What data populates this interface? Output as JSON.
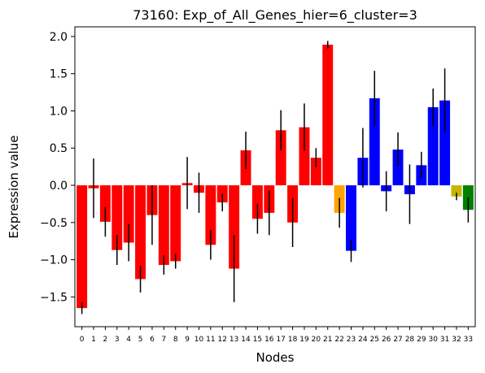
{
  "chart_data": {
    "type": "bar",
    "title": "73160: Exp_of_All_Genes_hier=6_cluster=3",
    "xlabel": "Nodes",
    "ylabel": "Expression value",
    "ylim": [
      -1.9,
      2.13
    ],
    "xlim": [
      -0.6,
      33.6
    ],
    "yticks": [
      -1.5,
      -1.0,
      -0.5,
      0.0,
      0.5,
      1.0,
      1.5,
      2.0
    ],
    "ytick_labels": [
      "−1.5",
      "−1.0",
      "−0.5",
      "0.0",
      "0.5",
      "1.0",
      "1.5",
      "2.0"
    ],
    "categories": [
      "0",
      "1",
      "2",
      "3",
      "4",
      "5",
      "6",
      "7",
      "8",
      "9",
      "10",
      "11",
      "12",
      "13",
      "14",
      "15",
      "16",
      "17",
      "18",
      "19",
      "20",
      "21",
      "22",
      "23",
      "24",
      "25",
      "26",
      "27",
      "28",
      "29",
      "30",
      "31",
      "32",
      "33"
    ],
    "values": [
      -1.65,
      -0.04,
      -0.49,
      -0.87,
      -0.77,
      -1.26,
      -0.4,
      -1.07,
      -1.02,
      0.03,
      -0.1,
      -0.8,
      -0.23,
      -1.12,
      0.47,
      -0.45,
      -0.37,
      0.74,
      -0.5,
      0.78,
      0.37,
      1.89,
      -0.37,
      -0.88,
      0.37,
      1.17,
      -0.08,
      0.48,
      -0.12,
      0.27,
      1.05,
      1.14,
      -0.15,
      -0.33
    ],
    "errors": [
      0.08,
      0.4,
      0.2,
      0.2,
      0.25,
      0.18,
      0.4,
      0.13,
      0.1,
      0.35,
      0.27,
      0.2,
      0.12,
      0.45,
      0.25,
      0.2,
      0.3,
      0.27,
      0.33,
      0.32,
      0.13,
      0.05,
      0.2,
      0.15,
      0.4,
      0.37,
      0.27,
      0.23,
      0.4,
      0.18,
      0.25,
      0.43,
      0.05,
      0.17
    ],
    "colors": [
      "#ff0000",
      "#ff0000",
      "#ff0000",
      "#ff0000",
      "#ff0000",
      "#ff0000",
      "#ff0000",
      "#ff0000",
      "#ff0000",
      "#ff0000",
      "#ff0000",
      "#ff0000",
      "#ff0000",
      "#ff0000",
      "#ff0000",
      "#ff0000",
      "#ff0000",
      "#ff0000",
      "#ff0000",
      "#ff0000",
      "#ff0000",
      "#ff0000",
      "#ffa500",
      "#0000ff",
      "#0000ff",
      "#0000ff",
      "#0000ff",
      "#0000ff",
      "#0000ff",
      "#0000ff",
      "#0000ff",
      "#0000ff",
      "#c8b400",
      "#008000"
    ],
    "error_bar_color": "#000000",
    "grid": false,
    "legend": "none"
  }
}
